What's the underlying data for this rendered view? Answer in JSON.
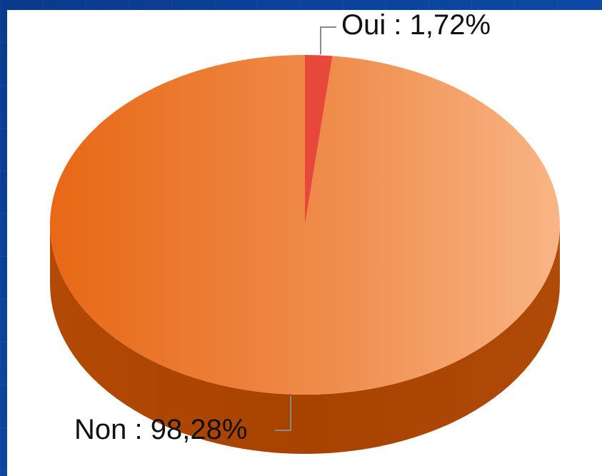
{
  "chart_data": {
    "type": "pie",
    "style": "3d",
    "categories": [
      "Oui",
      "Non"
    ],
    "values": [
      1.72,
      98.28
    ],
    "labels": [
      "Oui : 1,72%",
      "Non : 98,28%"
    ],
    "colors": {
      "Oui": "#e8483a",
      "Non_top_left": "#e96a1a",
      "Non_top_right": "#f6b07c",
      "Non_side": "#a94300",
      "background": "#0b3a8a",
      "panel": "#ffffff"
    }
  }
}
